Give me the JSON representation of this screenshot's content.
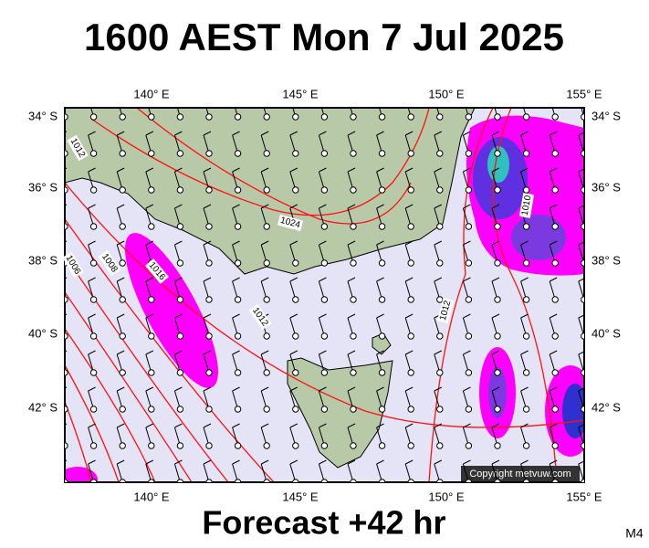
{
  "title": "1600 AEST Mon 7 Jul 2025",
  "lon_labels": [
    "140° E",
    "145° E",
    "150° E",
    "155° E"
  ],
  "lat_labels": [
    "34° S",
    "36° S",
    "38° S",
    "40° S",
    "42° S"
  ],
  "isobar_labels": [
    "1012",
    "1024",
    "1016",
    "1008",
    "1006",
    "1012",
    "1012",
    "1010"
  ],
  "copyright": "Copyright metvuw.com",
  "footer": "Forecast +42 hr",
  "corner_label": "M4"
}
